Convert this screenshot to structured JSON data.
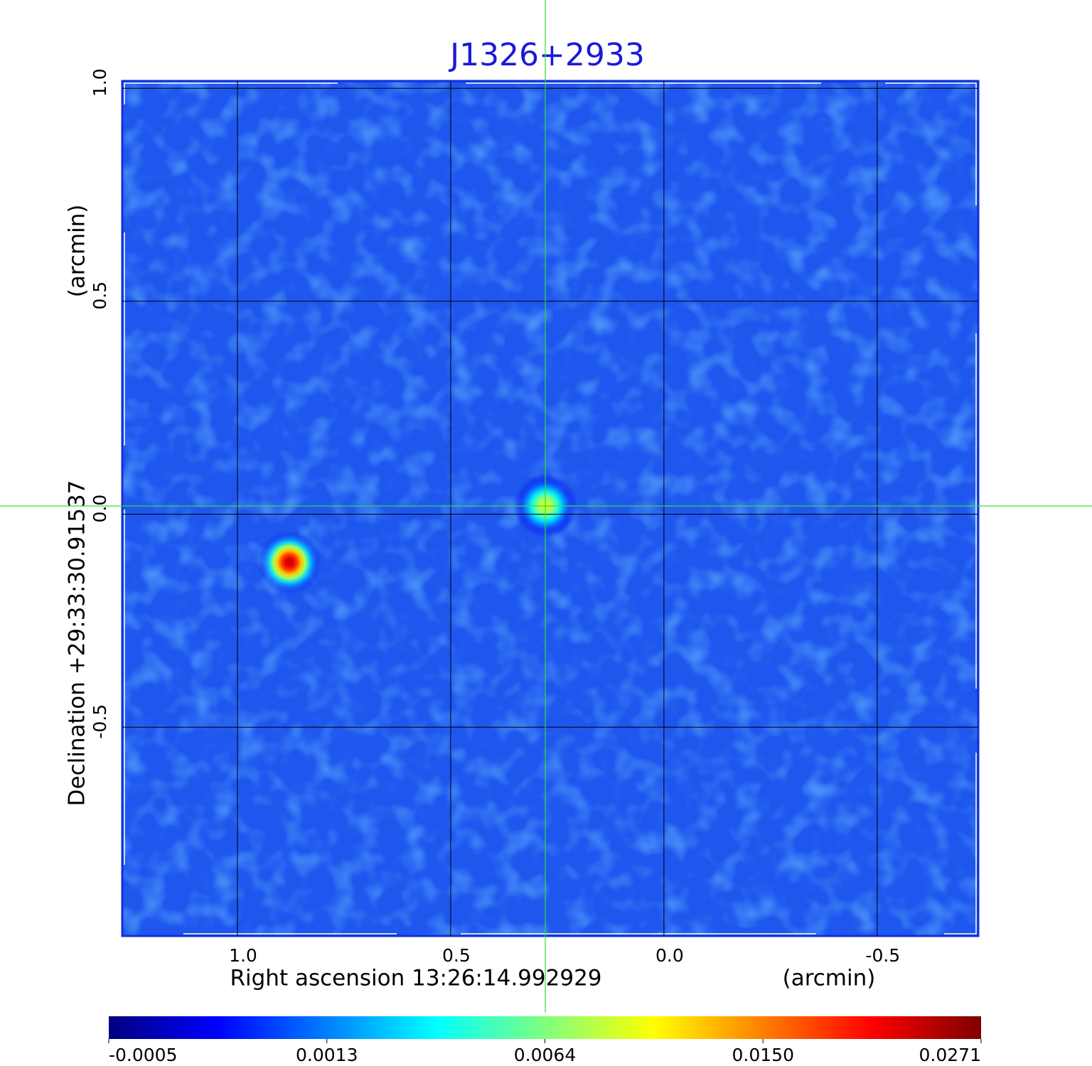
{
  "chart_data": {
    "type": "image",
    "title": "J1326+2933",
    "xlabel": "Right ascension  13:26:14.992929",
    "xunit": "(arcmin)",
    "ylabel": "Declination  +29:33:30.91537",
    "yunit": "(arcmin)",
    "xlim": [
      1.27,
      -0.737
    ],
    "ylim": [
      -0.99,
      1.017
    ],
    "xticks": [
      {
        "value": 1,
        "label": "1.0"
      },
      {
        "value": 0.5,
        "label": "0.5"
      },
      {
        "value": 0,
        "label": "0.0"
      },
      {
        "value": -0.5,
        "label": "-0.5"
      }
    ],
    "yticks": [
      {
        "value": 1,
        "label": "1.0"
      },
      {
        "value": 0.5,
        "label": "0.5"
      },
      {
        "value": 0,
        "label": "0.0"
      },
      {
        "value": -0.5,
        "label": "-0.5"
      }
    ],
    "grid": true,
    "sources": [
      {
        "x": 0.878,
        "y": -0.113,
        "peak": 0.0237
      },
      {
        "x": 0.278,
        "y": 0.02,
        "peak": 0.0092
      }
    ],
    "colorbar": {
      "lim": [
        -0.0005,
        0.0271
      ],
      "ticks": [
        -0.0005,
        0.0013,
        0.0064,
        {
          "value": 0.015,
          "label": "0.0150"
        },
        0.0271
      ],
      "colormap": [
        "#00007f",
        "#0000ff",
        "#007fff",
        "#00ffff",
        "#7fff7f",
        "#ffff00",
        "#ff7f00",
        "#ff0000",
        "#7f0000"
      ]
    }
  }
}
